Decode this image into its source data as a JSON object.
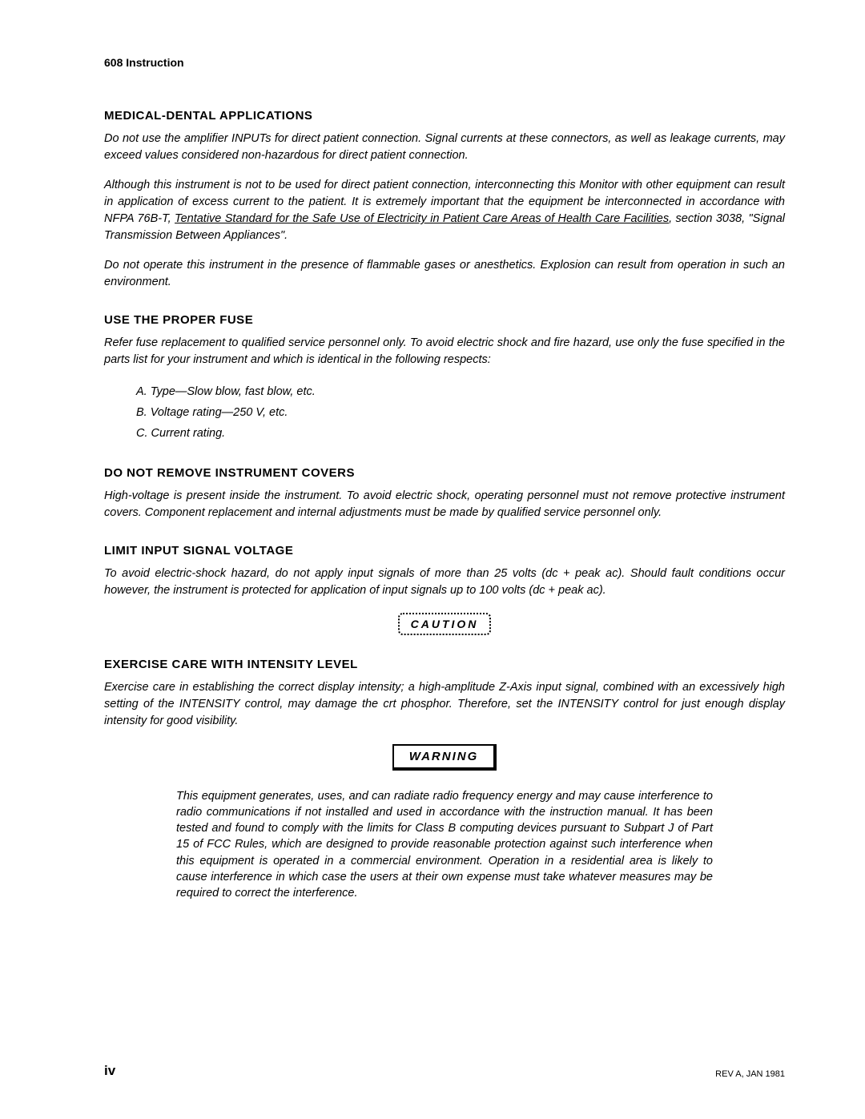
{
  "doc_header": "608 Instruction",
  "sections": {
    "medical": {
      "heading": "MEDICAL-DENTAL APPLICATIONS",
      "p1": "Do not use the amplifier INPUTs for direct patient connection. Signal currents at these connectors, as well as leakage currents, may exceed values considered non-hazardous for direct patient connection.",
      "p2_pre": "Although this instrument is not to be used for direct patient connection, interconnecting this Monitor with other equipment can result in application of excess current to the patient. It is extremely important that the equipment be interconnected in accordance with NFPA 76B-T, ",
      "p2_u1": "Tentative Standard for the Safe Use of Electricity in Patient Care Areas of Health Care Facilities",
      "p2_mid": ", section 3038, \"Signal Transmission Between Appliances\".",
      "p3": "Do not operate this instrument in the presence of flammable gases or anesthetics. Explosion can result from operation in such an environment."
    },
    "fuse": {
      "heading": "USE THE PROPER FUSE",
      "p1": "Refer fuse replacement to qualified service personnel only. To avoid electric shock and fire hazard, use only the fuse specified in the parts list for your instrument and which is identical in the following respects:",
      "items": {
        "a": "A. Type—Slow blow, fast blow, etc.",
        "b": "B. Voltage rating—250 V, etc.",
        "c": "C. Current rating."
      }
    },
    "covers": {
      "heading": "DO NOT REMOVE INSTRUMENT COVERS",
      "p1": "High-voltage is present inside the instrument. To avoid electric shock, operating personnel must not remove protective instrument covers. Component replacement and internal adjustments must be made by qualified service personnel only."
    },
    "limit": {
      "heading": "LIMIT INPUT SIGNAL VOLTAGE",
      "p1": "To avoid electric-shock hazard, do not apply input signals of more than 25 volts (dc + peak ac). Should fault conditions occur however, the instrument is protected for application of input signals up to 100 volts (dc + peak ac)."
    },
    "caution_label": "CAUTION",
    "intensity": {
      "heading": "EXERCISE CARE WITH INTENSITY LEVEL",
      "p1": "Exercise care in establishing the correct display intensity; a high-amplitude Z-Axis input signal, combined with an excessively high setting of the INTENSITY control, may damage the crt phosphor. Therefore, set the INTENSITY control for just enough display intensity for good visibility."
    },
    "warning_label": "WARNING",
    "warning_text": "This equipment generates, uses, and can radiate radio frequency energy and may cause interference to radio communications if not installed and used in accordance with the instruction manual. It has been tested and found to comply with the limits for Class B computing devices pursuant to Subpart J of Part 15 of FCC Rules, which are designed to provide reasonable protection against such interference when this equipment is operated in a commercial environment. Operation in a residential area is likely to cause interference in which case the users at their own expense must take whatever measures may be required to correct the interference."
  },
  "footer": {
    "page_num": "iv",
    "rev": "REV A, JAN 1981"
  },
  "colors": {
    "background": "#ffffff",
    "text": "#000000"
  },
  "typography": {
    "body_fontsize": 14.5,
    "heading_fontsize": 15,
    "header_fontsize": 14,
    "body_style": "italic",
    "heading_weight": "bold"
  }
}
